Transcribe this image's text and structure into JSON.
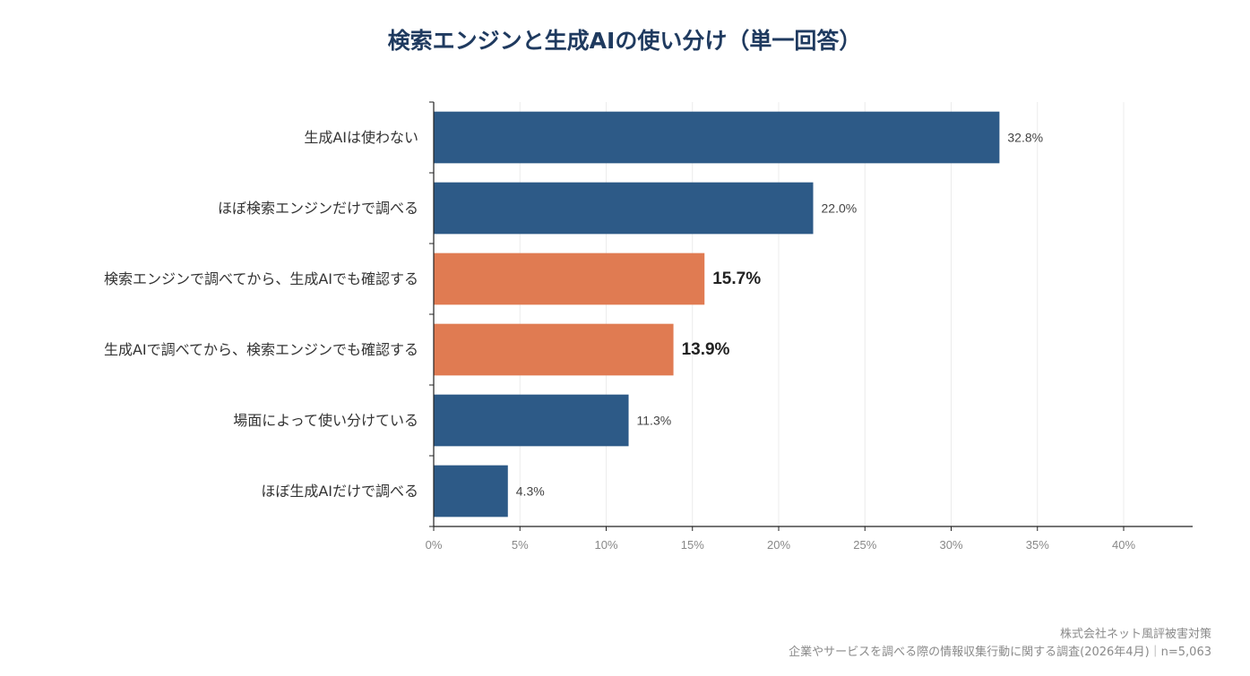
{
  "chart_data": {
    "type": "bar",
    "orientation": "horizontal",
    "title": "検索エンジンと生成AIの使い分け（単一回答）",
    "categories": [
      "生成AIは使わない",
      "ほぼ検索エンジンだけで調べる",
      "検索エンジンで調べてから、生成AIでも確認する",
      "生成AIで調べてから、検索エンジンでも確認する",
      "場面によって使い分けている",
      "ほぼ生成AIだけで調べる"
    ],
    "values": [
      32.8,
      22.0,
      15.7,
      13.9,
      11.3,
      4.3
    ],
    "value_labels": [
      "32.8%",
      "22.0%",
      "15.7%",
      "13.9%",
      "11.3%",
      "4.3%"
    ],
    "highlight": [
      false,
      false,
      true,
      true,
      false,
      false
    ],
    "colors": {
      "default": "#2d5a87",
      "highlight": "#e07b52"
    },
    "xlim": [
      0,
      44
    ],
    "x_ticks": [
      0,
      5,
      10,
      15,
      20,
      25,
      30,
      35,
      40
    ],
    "x_tick_labels": [
      "0%",
      "5%",
      "10%",
      "15%",
      "20%",
      "25%",
      "30%",
      "35%",
      "40%"
    ],
    "xlabel": "",
    "ylabel": "",
    "grid": "vertical",
    "legend": "none"
  },
  "footer": {
    "publisher": "株式会社ネット風評被害対策",
    "source": "企業やサービスを調べる際の情報収集行動に関する調査(2026年4月)｜n=5,063"
  }
}
